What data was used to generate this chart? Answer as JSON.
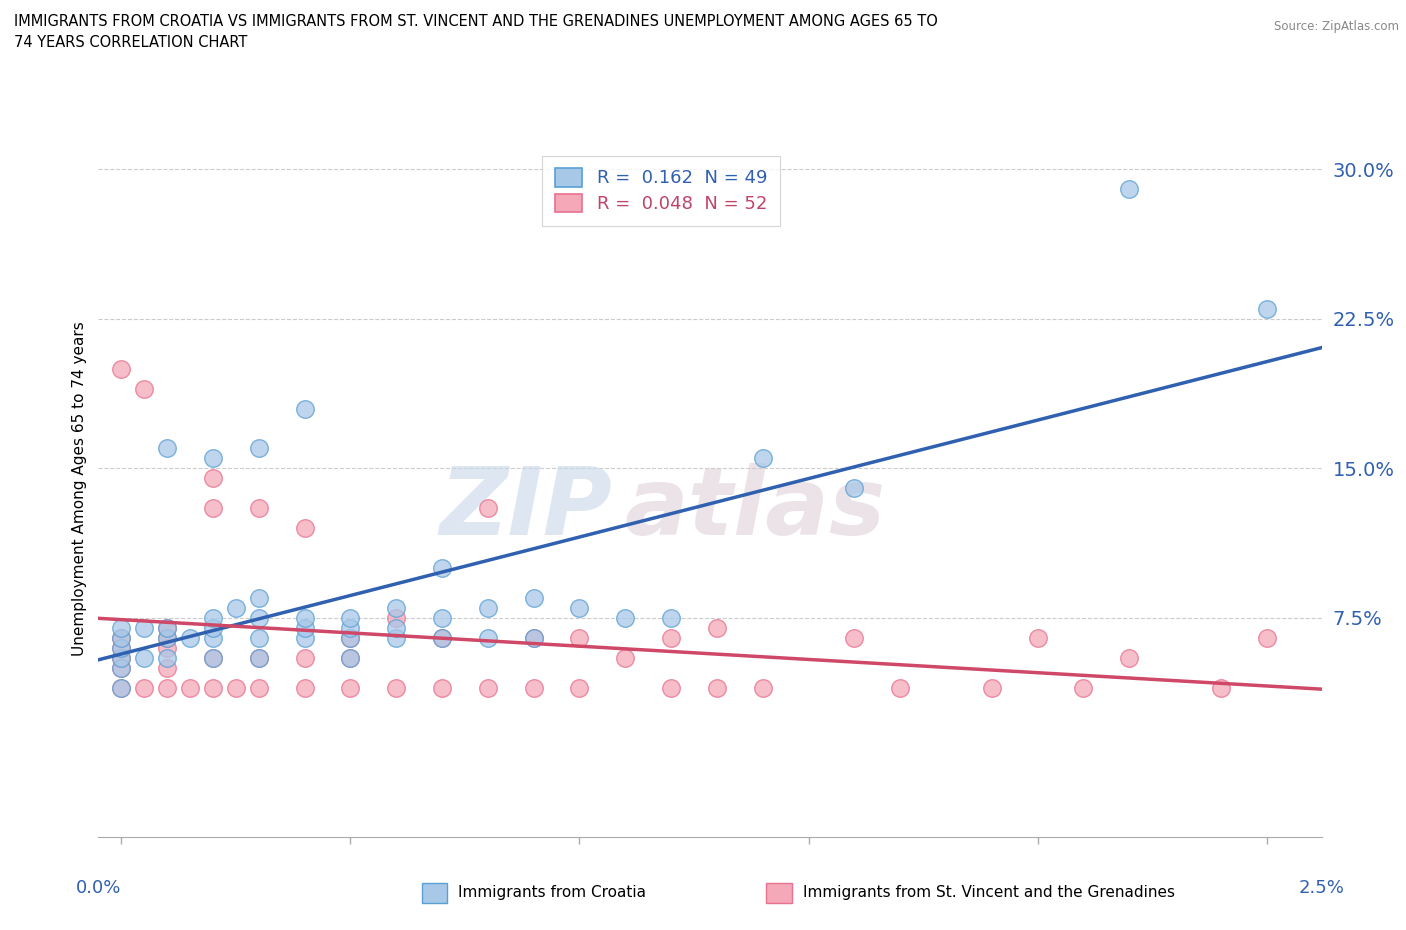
{
  "title_line1": "IMMIGRANTS FROM CROATIA VS IMMIGRANTS FROM ST. VINCENT AND THE GRENADINES UNEMPLOYMENT AMONG AGES 65 TO",
  "title_line2": "74 YEARS CORRELATION CHART",
  "source": "Source: ZipAtlas.com",
  "ylabel": "Unemployment Among Ages 65 to 74 years",
  "yticks": [
    0.0,
    0.075,
    0.15,
    0.225,
    0.3
  ],
  "ytick_labels": [
    "",
    "7.5%",
    "15.0%",
    "22.5%",
    "30.0%"
  ],
  "ymin": -0.035,
  "ymax": 0.315,
  "xmin": -0.0005,
  "xmax": 0.0262,
  "legend_R1": "0.162",
  "legend_N1": "49",
  "legend_R2": "0.048",
  "legend_N2": "52",
  "color_croatia": "#a8c8e8",
  "color_stv": "#f4a8b8",
  "color_croatia_edge": "#5a9fd4",
  "color_stv_edge": "#e87090",
  "color_croatia_line": "#3060b0",
  "color_stv_line": "#d04868",
  "watermark_zip": "ZIP",
  "watermark_atlas": "atlas",
  "croatia_scatter_x": [
    0.0,
    0.0,
    0.0,
    0.0,
    0.0,
    0.0,
    0.0005,
    0.0005,
    0.001,
    0.001,
    0.001,
    0.001,
    0.0015,
    0.002,
    0.002,
    0.002,
    0.002,
    0.002,
    0.0025,
    0.003,
    0.003,
    0.003,
    0.003,
    0.003,
    0.004,
    0.004,
    0.004,
    0.004,
    0.005,
    0.005,
    0.005,
    0.005,
    0.006,
    0.006,
    0.006,
    0.007,
    0.007,
    0.007,
    0.008,
    0.008,
    0.009,
    0.009,
    0.01,
    0.011,
    0.012,
    0.014,
    0.016,
    0.022,
    0.025
  ],
  "croatia_scatter_y": [
    0.04,
    0.05,
    0.055,
    0.06,
    0.065,
    0.07,
    0.055,
    0.07,
    0.055,
    0.065,
    0.07,
    0.16,
    0.065,
    0.055,
    0.065,
    0.07,
    0.075,
    0.155,
    0.08,
    0.055,
    0.065,
    0.075,
    0.085,
    0.16,
    0.065,
    0.07,
    0.075,
    0.18,
    0.055,
    0.065,
    0.07,
    0.075,
    0.065,
    0.07,
    0.08,
    0.065,
    0.075,
    0.1,
    0.065,
    0.08,
    0.065,
    0.085,
    0.08,
    0.075,
    0.075,
    0.155,
    0.14,
    0.29,
    0.23
  ],
  "stv_scatter_x": [
    0.0,
    0.0,
    0.0,
    0.0,
    0.0,
    0.0,
    0.0005,
    0.0005,
    0.001,
    0.001,
    0.001,
    0.001,
    0.001,
    0.0015,
    0.002,
    0.002,
    0.002,
    0.002,
    0.0025,
    0.003,
    0.003,
    0.003,
    0.004,
    0.004,
    0.004,
    0.005,
    0.005,
    0.005,
    0.006,
    0.006,
    0.007,
    0.007,
    0.008,
    0.008,
    0.009,
    0.009,
    0.01,
    0.01,
    0.011,
    0.012,
    0.012,
    0.013,
    0.013,
    0.014,
    0.016,
    0.017,
    0.019,
    0.02,
    0.021,
    0.022,
    0.024,
    0.025
  ],
  "stv_scatter_y": [
    0.04,
    0.05,
    0.055,
    0.06,
    0.065,
    0.2,
    0.04,
    0.19,
    0.04,
    0.05,
    0.06,
    0.065,
    0.07,
    0.04,
    0.04,
    0.055,
    0.13,
    0.145,
    0.04,
    0.04,
    0.055,
    0.13,
    0.04,
    0.055,
    0.12,
    0.04,
    0.055,
    0.065,
    0.04,
    0.075,
    0.04,
    0.065,
    0.04,
    0.13,
    0.04,
    0.065,
    0.04,
    0.065,
    0.055,
    0.04,
    0.065,
    0.04,
    0.07,
    0.04,
    0.065,
    0.04,
    0.04,
    0.065,
    0.04,
    0.055,
    0.04,
    0.065
  ]
}
